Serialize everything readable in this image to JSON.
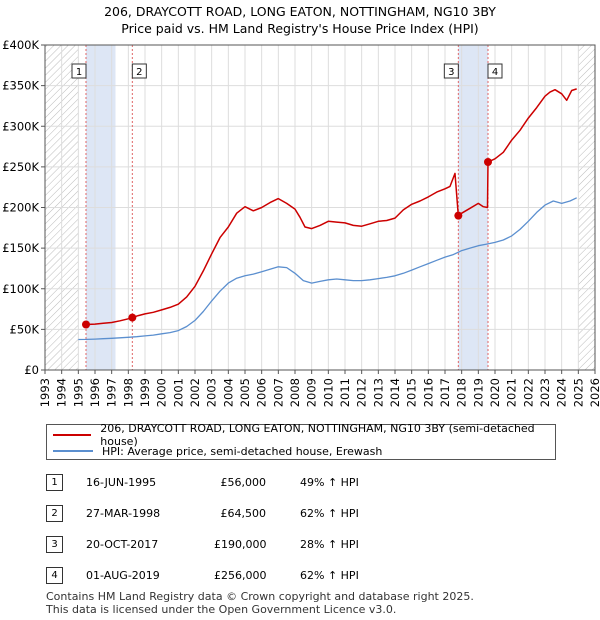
{
  "title_line1": "206, DRAYCOTT ROAD, LONG EATON, NOTTINGHAM, NG10 3BY",
  "title_line2": "Price paid vs. HM Land Registry's House Price Index (HPI)",
  "colors": {
    "property": "#cc0000",
    "hpi": "#5b8fcf",
    "band": "#dde6f5",
    "marker": "#cc0000",
    "vline": "#e06666"
  },
  "chart_data": {
    "type": "line",
    "title": "Price paid vs. HM Land Registry's House Price Index (HPI)",
    "xlim": [
      1993,
      2026
    ],
    "ylim": [
      0,
      400000
    ],
    "x_ticks": [
      1993,
      1994,
      1995,
      1996,
      1997,
      1998,
      1999,
      2000,
      2001,
      2002,
      2003,
      2004,
      2005,
      2006,
      2007,
      2008,
      2009,
      2010,
      2011,
      2012,
      2013,
      2014,
      2015,
      2016,
      2017,
      2018,
      2019,
      2020,
      2021,
      2022,
      2023,
      2024,
      2025,
      2026
    ],
    "y_ticks": [
      {
        "value": 0,
        "label": "£0"
      },
      {
        "value": 50000,
        "label": "£50K"
      },
      {
        "value": 100000,
        "label": "£100K"
      },
      {
        "value": 150000,
        "label": "£150K"
      },
      {
        "value": 200000,
        "label": "£200K"
      },
      {
        "value": 250000,
        "label": "£250K"
      },
      {
        "value": 300000,
        "label": "£300K"
      },
      {
        "value": 350000,
        "label": "£350K"
      },
      {
        "value": 400000,
        "label": "£400K"
      }
    ],
    "shaded_bands": [
      [
        1995.46,
        1997.23
      ],
      [
        2017.8,
        2019.58
      ]
    ],
    "hatched_ranges": [
      [
        1993,
        1995.0
      ],
      [
        2025.0,
        2026
      ]
    ],
    "series": [
      {
        "name": "206, DRAYCOTT ROAD, LONG EATON, NOTTINGHAM, NG10 3BY (semi-detached house)",
        "x": [
          1995.46,
          1996.0,
          1996.5,
          1997.0,
          1997.5,
          1998.0,
          1998.24,
          1998.6,
          1999.0,
          1999.5,
          2000.0,
          2000.5,
          2001.0,
          2001.5,
          2002.0,
          2002.5,
          2003.0,
          2003.5,
          2004.0,
          2004.5,
          2005.0,
          2005.5,
          2006.0,
          2006.5,
          2007.0,
          2007.5,
          2008.0,
          2008.3,
          2008.6,
          2009.0,
          2009.5,
          2010.0,
          2010.5,
          2011.0,
          2011.5,
          2012.0,
          2012.5,
          2013.0,
          2013.5,
          2014.0,
          2014.5,
          2015.0,
          2015.5,
          2016.0,
          2016.5,
          2017.0,
          2017.3,
          2017.6,
          2017.8,
          2018.0,
          2018.5,
          2019.0,
          2019.3,
          2019.55,
          2019.58,
          2020.0,
          2020.5,
          2021.0,
          2021.5,
          2022.0,
          2022.5,
          2023.0,
          2023.3,
          2023.6,
          2024.0,
          2024.3,
          2024.6,
          2024.9
        ],
        "y": [
          56000,
          56500,
          57500,
          58500,
          60500,
          63000,
          64500,
          67000,
          69000,
          71000,
          74000,
          77000,
          81000,
          90000,
          103000,
          122000,
          143000,
          163000,
          176000,
          193000,
          201000,
          196000,
          200000,
          206000,
          211000,
          205000,
          198000,
          188000,
          176000,
          174000,
          178000,
          183000,
          182000,
          181000,
          178000,
          177000,
          180000,
          183000,
          184000,
          187000,
          197000,
          204000,
          208000,
          213000,
          219000,
          223000,
          226000,
          242000,
          190000,
          193000,
          199000,
          205000,
          201000,
          200000,
          256000,
          260000,
          268000,
          283000,
          295000,
          310000,
          323000,
          337000,
          342000,
          345000,
          340000,
          332000,
          344000,
          346000
        ]
      },
      {
        "name": "HPI: Average price, semi-detached house, Erewash",
        "x": [
          1995.0,
          1995.5,
          1996.0,
          1996.5,
          1997.0,
          1997.5,
          1998.0,
          1998.5,
          1999.0,
          1999.5,
          2000.0,
          2000.5,
          2001.0,
          2001.5,
          2002.0,
          2002.5,
          2003.0,
          2003.5,
          2004.0,
          2004.5,
          2005.0,
          2005.5,
          2006.0,
          2006.5,
          2007.0,
          2007.5,
          2008.0,
          2008.5,
          2009.0,
          2009.5,
          2010.0,
          2010.5,
          2011.0,
          2011.5,
          2012.0,
          2012.5,
          2013.0,
          2013.5,
          2014.0,
          2014.5,
          2015.0,
          2015.5,
          2016.0,
          2016.5,
          2017.0,
          2017.5,
          2018.0,
          2018.5,
          2019.0,
          2019.5,
          2020.0,
          2020.5,
          2021.0,
          2021.5,
          2022.0,
          2022.5,
          2023.0,
          2023.5,
          2024.0,
          2024.5,
          2024.9
        ],
        "y": [
          37500,
          37600,
          38000,
          38500,
          39000,
          39600,
          40300,
          41000,
          42000,
          43000,
          44500,
          46000,
          48500,
          53500,
          61000,
          72000,
          85000,
          97000,
          107000,
          113000,
          116000,
          118000,
          121000,
          124000,
          127000,
          126000,
          119000,
          110000,
          107000,
          109000,
          111000,
          112000,
          111000,
          110000,
          110000,
          111000,
          112500,
          114000,
          116000,
          119000,
          123000,
          127000,
          131000,
          135000,
          139000,
          142000,
          147000,
          150000,
          153000,
          155000,
          157000,
          160000,
          165000,
          173000,
          183000,
          194000,
          203000,
          208000,
          205000,
          208000,
          212000
        ]
      }
    ],
    "sales": [
      {
        "n": "1",
        "x": 1995.46,
        "y": 56000
      },
      {
        "n": "2",
        "x": 1998.24,
        "y": 64500
      },
      {
        "n": "3",
        "x": 2017.8,
        "y": 190000
      },
      {
        "n": "4",
        "x": 2019.58,
        "y": 256000
      }
    ]
  },
  "legend": {
    "property_label": "206, DRAYCOTT ROAD, LONG EATON, NOTTINGHAM, NG10 3BY (semi-detached house)",
    "hpi_label": "HPI: Average price, semi-detached house, Erewash"
  },
  "table": [
    {
      "n": "1",
      "date": "16-JUN-1995",
      "price": "£56,000",
      "hpi": "49% ↑ HPI"
    },
    {
      "n": "2",
      "date": "27-MAR-1998",
      "price": "£64,500",
      "hpi": "62% ↑ HPI"
    },
    {
      "n": "3",
      "date": "20-OCT-2017",
      "price": "£190,000",
      "hpi": "28% ↑ HPI"
    },
    {
      "n": "4",
      "date": "01-AUG-2019",
      "price": "£256,000",
      "hpi": "62% ↑ HPI"
    }
  ],
  "footer_line1": "Contains HM Land Registry data © Crown copyright and database right 2025.",
  "footer_line2": "This data is licensed under the Open Government Licence v3.0."
}
